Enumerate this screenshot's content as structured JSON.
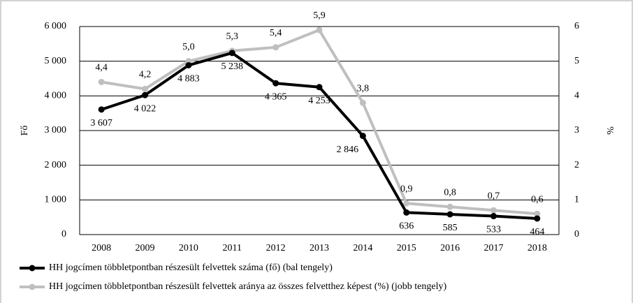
{
  "chart_data": {
    "type": "line",
    "y_label": "Fő",
    "y2_label": "%",
    "categories": [
      "2008",
      "2009",
      "2010",
      "2011",
      "2012",
      "2013",
      "2014",
      "2015",
      "2016",
      "2017",
      "2018"
    ],
    "series": [
      {
        "name": "HH jogcímen többletpontban részesült felvettek száma (fő) (bal tengely)",
        "color": "#000000",
        "axis": "y",
        "values": [
          3607,
          4022,
          4883,
          5238,
          4365,
          4253,
          2846,
          636,
          585,
          533,
          464
        ],
        "value_labels": [
          "3 607",
          "4 022",
          "4 883",
          "5 238",
          "4 365",
          "4 253",
          "2 846",
          "636",
          "585",
          "533",
          "464"
        ]
      },
      {
        "name": "HH jogcímen többletpontban részesült felvettek aránya az összes felvetthez képest (%) (jobb tengely)",
        "color": "#bfbfbf",
        "axis": "y2",
        "values": [
          4.4,
          4.2,
          5.0,
          5.3,
          5.4,
          5.9,
          3.8,
          0.9,
          0.8,
          0.7,
          0.6
        ],
        "value_labels": [
          "4,4",
          "4,2",
          "5,0",
          "5,3",
          "5,4",
          "5,9",
          "3,8",
          "0,9",
          "0,8",
          "0,7",
          "0,6"
        ]
      }
    ],
    "ylim": [
      0,
      6000
    ],
    "yticks": [
      0,
      {
        "value": 1000,
        "label": "1 000"
      },
      {
        "value": 2000,
        "label": "2 000"
      },
      {
        "value": 3000,
        "label": "3 000"
      },
      {
        "value": 4000,
        "label": "4 000"
      },
      {
        "value": 5000,
        "label": "5 000"
      },
      {
        "value": 6000,
        "label": "6 000"
      }
    ],
    "y2lim": [
      0,
      6
    ],
    "y2ticks": [
      0,
      1,
      2,
      3,
      4,
      5,
      6
    ],
    "grid": true,
    "legend": "bottom"
  }
}
